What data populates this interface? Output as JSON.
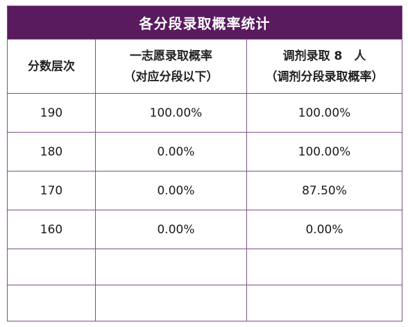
{
  "title": "各分段录取概率统计",
  "headers": {
    "col1": "分数层次",
    "col2_line1": "一志愿录取概率",
    "col2_line2": "（对应分段以下）",
    "col3_line1": "调剂录取 8　人",
    "col3_line2": "（调剂分段录取概率）"
  },
  "rows": [
    {
      "score": "190",
      "first_choice": "100.00%",
      "adjust": "100.00%"
    },
    {
      "score": "180",
      "first_choice": "0.00%",
      "adjust": "100.00%"
    },
    {
      "score": "170",
      "first_choice": "0.00%",
      "adjust": "87.50%"
    },
    {
      "score": "160",
      "first_choice": "0.00%",
      "adjust": "0.00%"
    }
  ],
  "colors": {
    "title_bg": "#5a1a5e",
    "border": "#7a4f86"
  }
}
